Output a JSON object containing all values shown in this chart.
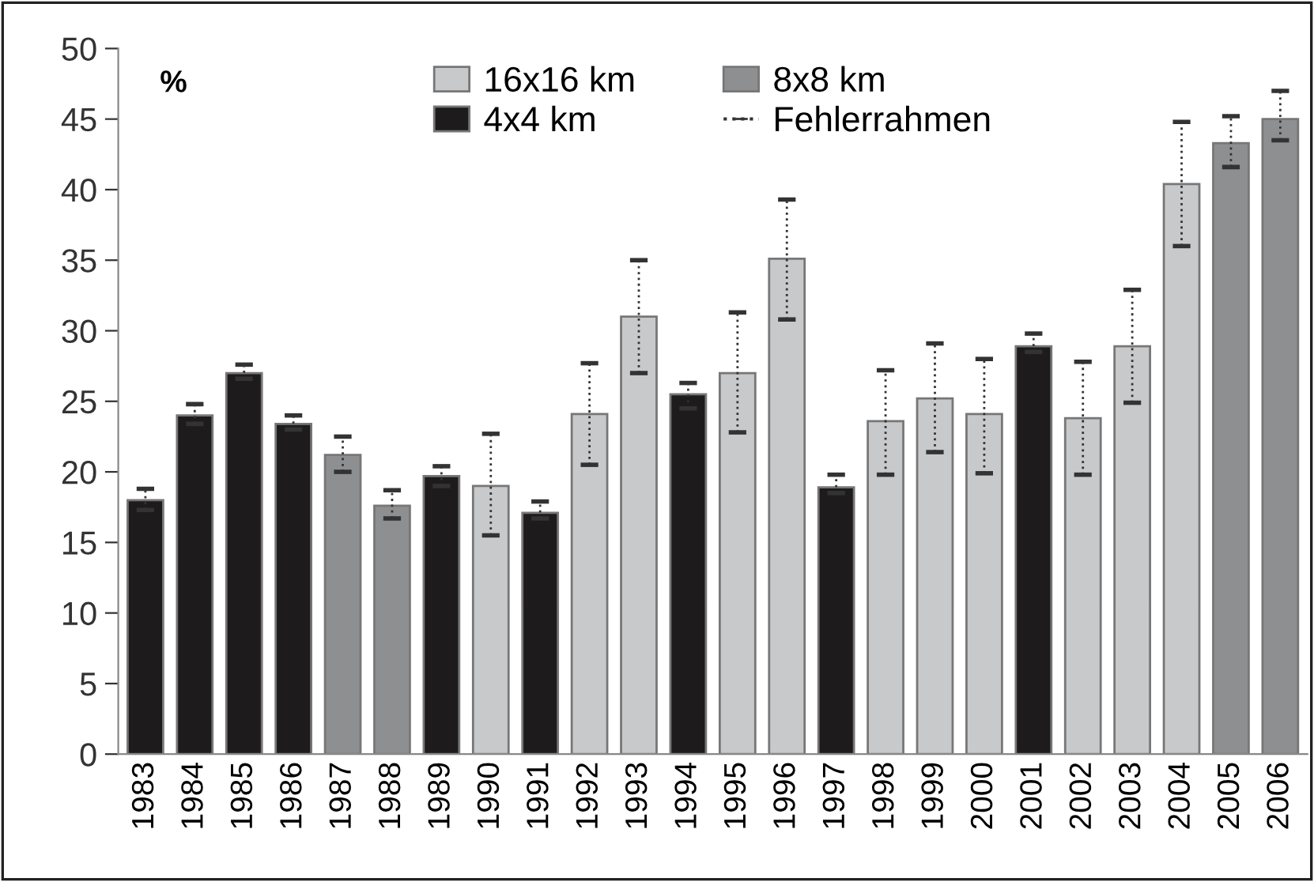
{
  "chart_data": {
    "type": "bar",
    "ylabel": "%",
    "categories": [
      "1983",
      "1984",
      "1985",
      "1986",
      "1987",
      "1988",
      "1989",
      "1990",
      "1991",
      "1992",
      "1993",
      "1994",
      "1995",
      "1996",
      "1997",
      "1998",
      "1999",
      "2000",
      "2001",
      "2002",
      "2003",
      "2004",
      "2005",
      "2006"
    ],
    "series": [
      {
        "name": "16x16 km",
        "color": "#c8c9cb",
        "values": [
          null,
          null,
          null,
          null,
          null,
          null,
          null,
          19,
          null,
          24.1,
          31,
          null,
          27,
          35.1,
          null,
          23.6,
          25.2,
          24.1,
          null,
          23.8,
          28.9,
          40.4,
          null,
          null
        ],
        "errors": [
          null,
          null,
          null,
          null,
          null,
          null,
          null,
          [
            15.5,
            22.7
          ],
          null,
          [
            20.5,
            27.7
          ],
          [
            27,
            35
          ],
          null,
          [
            22.8,
            31.3
          ],
          [
            30.8,
            39.3
          ],
          null,
          [
            19.8,
            27.2
          ],
          [
            21.4,
            29.1
          ],
          [
            19.9,
            28
          ],
          null,
          [
            19.8,
            27.8
          ],
          [
            24.9,
            32.9
          ],
          [
            36,
            44.8
          ],
          null,
          null
        ]
      },
      {
        "name": "8x8 km",
        "color": "#8e8f91",
        "values": [
          null,
          null,
          null,
          null,
          21.2,
          17.6,
          null,
          null,
          null,
          null,
          null,
          null,
          null,
          null,
          null,
          null,
          null,
          null,
          null,
          null,
          null,
          null,
          43.3,
          45
        ],
        "errors": [
          null,
          null,
          null,
          null,
          [
            20,
            22.5
          ],
          [
            16.7,
            18.7
          ],
          null,
          null,
          null,
          null,
          null,
          null,
          null,
          null,
          null,
          null,
          null,
          null,
          null,
          null,
          null,
          null,
          [
            41.6,
            45.2
          ],
          [
            43.5,
            47
          ]
        ]
      },
      {
        "name": "4x4 km",
        "color": "#1e1b1c",
        "values": [
          18,
          24,
          27,
          23.4,
          null,
          null,
          19.7,
          null,
          17.1,
          null,
          null,
          25.5,
          null,
          null,
          18.9,
          null,
          null,
          null,
          28.9,
          null,
          null,
          null,
          null,
          null
        ],
        "errors": [
          [
            17.3,
            18.8
          ],
          [
            23.4,
            24.8
          ],
          [
            26.6,
            27.6
          ],
          [
            23,
            24
          ],
          null,
          null,
          [
            19,
            20.4
          ],
          null,
          [
            16.7,
            17.9
          ],
          null,
          null,
          [
            24.5,
            26.3
          ],
          null,
          null,
          [
            18.5,
            19.8
          ],
          null,
          null,
          null,
          [
            28.5,
            29.8
          ],
          null,
          null,
          null,
          null,
          null
        ]
      }
    ],
    "annotations": [
      "Fehlerrahmen"
    ],
    "ylim": [
      0,
      50
    ],
    "yticks": [
      0,
      5,
      10,
      15,
      20,
      25,
      30,
      35,
      40,
      45,
      50
    ],
    "grid": false,
    "legend": "top",
    "line_style": "dotted"
  }
}
